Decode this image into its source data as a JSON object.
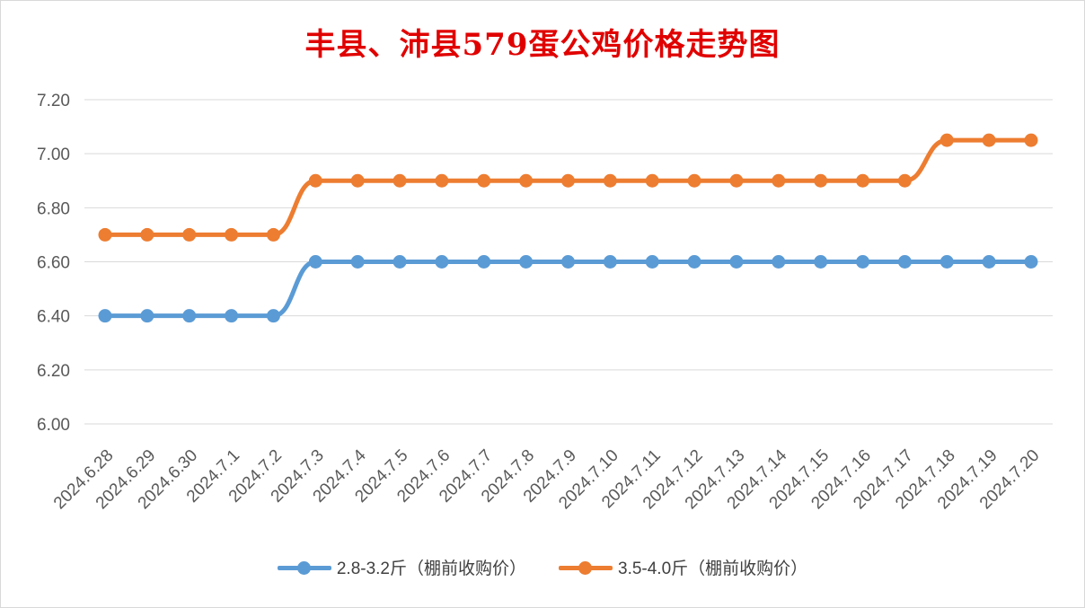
{
  "chart_data": {
    "type": "line",
    "title": "丰县、沛县579蛋公鸡价格走势图",
    "categories": [
      "2024.6.28",
      "2024.6.29",
      "2024.6.30",
      "2024.7.1",
      "2024.7.2",
      "2024.7.3",
      "2024.7.4",
      "2024.7.5",
      "2024.7.6",
      "2024.7.7",
      "2024.7.8",
      "2024.7.9",
      "2024.7.10",
      "2024.7.11",
      "2024.7.12",
      "2024.7.13",
      "2024.7.14",
      "2024.7.15",
      "2024.7.16",
      "2024.7.17",
      "2024.7.18",
      "2024.7.19",
      "2024.7.20"
    ],
    "series": [
      {
        "name": "2.8-3.2斤（棚前收购价）",
        "color": "#5b9bd5",
        "values": [
          6.4,
          6.4,
          6.4,
          6.4,
          6.4,
          6.6,
          6.6,
          6.6,
          6.6,
          6.6,
          6.6,
          6.6,
          6.6,
          6.6,
          6.6,
          6.6,
          6.6,
          6.6,
          6.6,
          6.6,
          6.6,
          6.6,
          6.6
        ]
      },
      {
        "name": "3.5-4.0斤（棚前收购价）",
        "color": "#ed7d31",
        "values": [
          6.7,
          6.7,
          6.7,
          6.7,
          6.7,
          6.9,
          6.9,
          6.9,
          6.9,
          6.9,
          6.9,
          6.9,
          6.9,
          6.9,
          6.9,
          6.9,
          6.9,
          6.9,
          6.9,
          6.9,
          7.05,
          7.05,
          7.05
        ]
      }
    ],
    "ylim": [
      6.0,
      7.2
    ],
    "yticks": [
      "6.00",
      "6.20",
      "6.40",
      "6.60",
      "6.80",
      "7.00",
      "7.20"
    ],
    "ytick_values": [
      6.0,
      6.2,
      6.4,
      6.6,
      6.8,
      7.0,
      7.2
    ],
    "grid": true,
    "legend": "bottom",
    "title_color": "#e00000"
  }
}
